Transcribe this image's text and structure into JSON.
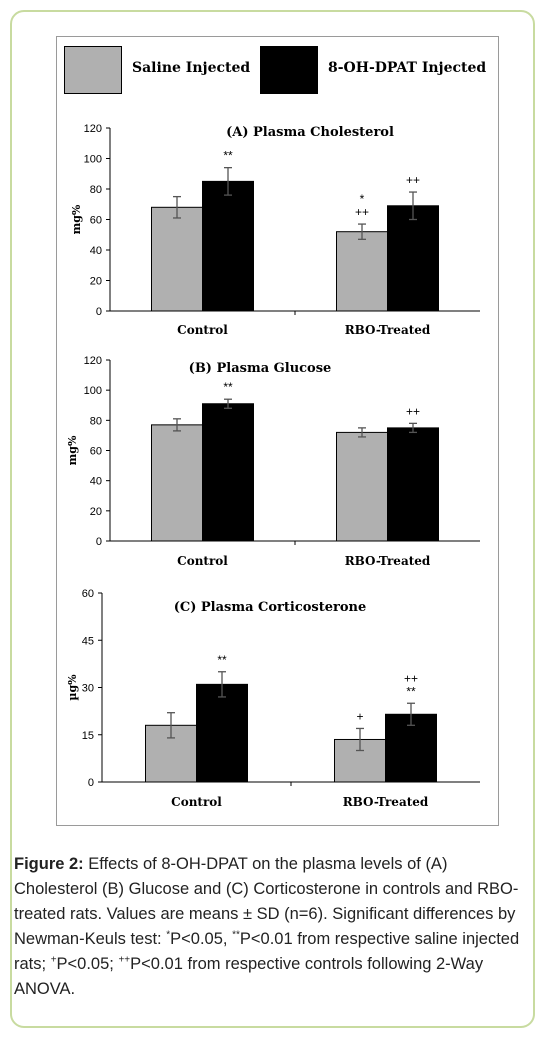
{
  "legend": {
    "items": [
      {
        "label": "Saline Injected",
        "color": "#b0b0b0"
      },
      {
        "label": "8-OH-DPAT Injected",
        "color": "#000000"
      }
    ]
  },
  "chart_data": [
    {
      "type": "bar",
      "title": "(A) Plasma Cholesterol",
      "ylabel": "mg%",
      "ylim": [
        0,
        120
      ],
      "yticks": [
        0,
        20,
        40,
        60,
        80,
        100,
        120
      ],
      "categories": [
        "Control",
        "RBO-Treated"
      ],
      "series": [
        {
          "name": "Saline Injected",
          "values": [
            68,
            52
          ],
          "errors": [
            7,
            5
          ],
          "color": "#b0b0b0"
        },
        {
          "name": "8-OH-DPAT Injected",
          "values": [
            85,
            69
          ],
          "errors": [
            9,
            9
          ],
          "color": "#000000"
        }
      ],
      "annotations": [
        {
          "category": 0,
          "series": 1,
          "lines": [
            "**"
          ]
        },
        {
          "category": 1,
          "series": 0,
          "lines": [
            "*",
            "++"
          ]
        },
        {
          "category": 1,
          "series": 1,
          "lines": [
            "++"
          ]
        }
      ]
    },
    {
      "type": "bar",
      "title": "(B) Plasma Glucose",
      "ylabel": "mg%",
      "ylim": [
        0,
        120
      ],
      "yticks": [
        0,
        20,
        40,
        60,
        80,
        100,
        120
      ],
      "categories": [
        "Control",
        "RBO-Treated"
      ],
      "series": [
        {
          "name": "Saline Injected",
          "values": [
            77,
            72
          ],
          "errors": [
            4,
            3
          ],
          "color": "#b0b0b0"
        },
        {
          "name": "8-OH-DPAT Injected",
          "values": [
            91,
            75
          ],
          "errors": [
            3,
            3
          ],
          "color": "#000000"
        }
      ],
      "annotations": [
        {
          "category": 0,
          "series": 1,
          "lines": [
            "**"
          ]
        },
        {
          "category": 1,
          "series": 1,
          "lines": [
            "++"
          ]
        }
      ]
    },
    {
      "type": "bar",
      "title": "(C) Plasma Corticosterone",
      "ylabel": "µg%",
      "ylim": [
        0,
        60
      ],
      "yticks": [
        0,
        15,
        30,
        45,
        60
      ],
      "categories": [
        "Control",
        "RBO-Treated"
      ],
      "series": [
        {
          "name": "Saline Injected",
          "values": [
            18,
            13.5
          ],
          "errors": [
            4,
            3.5
          ],
          "color": "#b0b0b0"
        },
        {
          "name": "8-OH-DPAT Injected",
          "values": [
            31,
            21.5
          ],
          "errors": [
            4,
            3.5
          ],
          "color": "#000000"
        }
      ],
      "annotations": [
        {
          "category": 0,
          "series": 1,
          "lines": [
            "**"
          ]
        },
        {
          "category": 1,
          "series": 0,
          "lines": [
            "+"
          ]
        },
        {
          "category": 1,
          "series": 1,
          "lines": [
            "++",
            "**"
          ]
        }
      ]
    }
  ],
  "caption": {
    "label": "Figure 2:",
    "text_1": " Effects of 8-OH-DPAT on the plasma levels of (A) Cholesterol (B) Glucose and (C) Corticosterone in controls and RBO-treated rats. Values are means ± SD (n=6). Significant differences by Newman-Keuls test: ",
    "sup_1": "*",
    "text_2": "P<0.05, ",
    "sup_2": "**",
    "text_3": "P<0.01 from respective saline injected rats; ",
    "sup_3": "+",
    "text_4": "P<0.05; ",
    "sup_4": "++",
    "text_5": "P<0.01 from respective controls following 2-Way ANOVA."
  }
}
